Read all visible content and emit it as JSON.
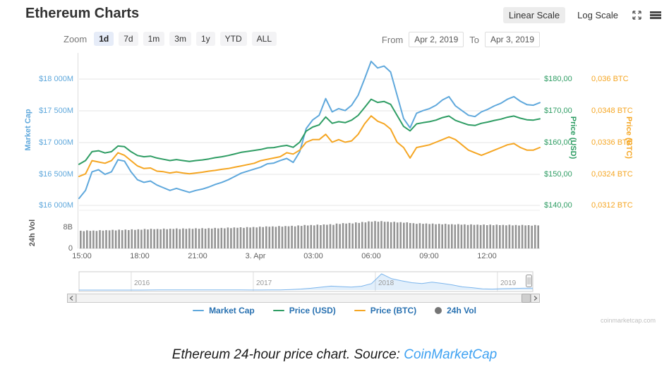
{
  "header": {
    "title": "Ethereum Charts",
    "scale_toggle": {
      "linear": "Linear Scale",
      "log": "Log Scale"
    },
    "icons": [
      "expand-icon",
      "menu-icon"
    ]
  },
  "toolbar": {
    "zoom_label": "Zoom",
    "zoom_buttons": [
      "1d",
      "7d",
      "1m",
      "3m",
      "1y",
      "YTD",
      "ALL"
    ],
    "active_zoom": "1d",
    "from_label": "From",
    "from_value": "Apr 2, 2019",
    "to_label": "To",
    "to_value": "Apr 3, 2019"
  },
  "legend": [
    {
      "label": "Market Cap",
      "color": "#5fa8dc",
      "swatch": "line"
    },
    {
      "label": "Price (USD)",
      "color": "#2f9d64",
      "swatch": "line"
    },
    {
      "label": "Price (BTC)",
      "color": "#f5a623",
      "swatch": "line"
    },
    {
      "label": "24h Vol",
      "color": "#757575",
      "swatch": "dot"
    }
  ],
  "watermark": "coinmarketcap.com",
  "caption": {
    "text": "Ethereum 24-hour price chart. Source: ",
    "link": "CoinMarketCap"
  },
  "chart_data": {
    "type": "line",
    "title": "Ethereum Charts",
    "x_range": "Apr 2, 2019 ~14:50 to Apr 3, 2019 ~14:30",
    "x_tick_labels": [
      "15:00",
      "18:00",
      "21:00",
      "3. Apr",
      "03:00",
      "06:00",
      "09:00",
      "12:00"
    ],
    "axes": {
      "market_cap": {
        "title": "Market Cap",
        "color": "#5fa8dc",
        "tick_labels": [
          "$18 000M",
          "$17 500M",
          "$17 000M",
          "$16 500M",
          "$16 000M"
        ],
        "tick_values": [
          18000,
          17500,
          17000,
          16500,
          16000
        ]
      },
      "price_usd": {
        "title": "Price (USD)",
        "color": "#2f9d64",
        "tick_labels": [
          "$180,00",
          "$170,00",
          "$160,00",
          "$150,00",
          "$140,00"
        ],
        "tick_values": [
          180,
          170,
          160,
          150,
          140
        ]
      },
      "price_btc": {
        "title": "Price (BTC)",
        "color": "#f5a623",
        "tick_labels": [
          "0,036 BTC",
          "0,0348 BTC",
          "0,0336 BTC",
          "0,0324 BTC",
          "0,0312 BTC"
        ],
        "tick_values": [
          0.036,
          0.0348,
          0.0336,
          0.0324,
          0.0312
        ]
      },
      "volume": {
        "title": "24h Vol",
        "tick_labels": [
          "8B",
          "0"
        ],
        "tick_values": [
          8,
          0
        ]
      }
    },
    "series": [
      {
        "name": "Market Cap",
        "axis": "market_cap",
        "unit": "USD millions",
        "color": "#5fa8dc",
        "values": [
          16111,
          16238,
          16532,
          16564,
          16490,
          16532,
          16722,
          16701,
          16532,
          16406,
          16364,
          16385,
          16322,
          16279,
          16237,
          16269,
          16237,
          16206,
          16237,
          16258,
          16290,
          16332,
          16364,
          16406,
          16458,
          16511,
          16543,
          16574,
          16606,
          16658,
          16669,
          16711,
          16743,
          16680,
          16848,
          17217,
          17353,
          17427,
          17690,
          17480,
          17532,
          17501,
          17585,
          17743,
          18006,
          18280,
          18175,
          18206,
          18112,
          17743,
          17375,
          17227,
          17459,
          17501,
          17532,
          17585,
          17669,
          17722,
          17575,
          17501,
          17427,
          17406,
          17480,
          17522,
          17575,
          17617,
          17680,
          17722,
          17648,
          17595,
          17585,
          17627
        ]
      },
      {
        "name": "Price (USD)",
        "axis": "price_usd",
        "unit": "USD",
        "color": "#2f9d64",
        "values": [
          153.0,
          154.2,
          157.0,
          157.3,
          156.6,
          157.0,
          158.8,
          158.6,
          157.0,
          155.8,
          155.4,
          155.6,
          155.0,
          154.6,
          154.2,
          154.5,
          154.2,
          153.9,
          154.2,
          154.4,
          154.7,
          155.1,
          155.4,
          155.8,
          156.3,
          156.8,
          157.1,
          157.4,
          157.7,
          158.2,
          158.3,
          158.7,
          159.0,
          158.4,
          160.0,
          163.5,
          164.8,
          165.5,
          168.0,
          166.0,
          166.5,
          166.2,
          167.0,
          168.5,
          171.0,
          173.6,
          172.6,
          172.9,
          172.0,
          168.5,
          165.0,
          163.6,
          165.8,
          166.2,
          166.5,
          167.0,
          167.8,
          168.3,
          166.9,
          166.2,
          165.5,
          165.3,
          166.0,
          166.4,
          166.9,
          167.3,
          167.9,
          168.3,
          167.6,
          167.1,
          167.0,
          167.4
        ]
      },
      {
        "name": "Price (BTC)",
        "axis": "price_btc",
        "unit": "BTC",
        "color": "#f5a623",
        "values": [
          0.0323,
          0.0324,
          0.0329,
          0.03285,
          0.0328,
          0.0329,
          0.0332,
          0.0331,
          0.0329,
          0.0327,
          0.0326,
          0.03262,
          0.0325,
          0.03248,
          0.03243,
          0.03247,
          0.03243,
          0.0324,
          0.03243,
          0.03246,
          0.0325,
          0.03253,
          0.03257,
          0.0326,
          0.03265,
          0.0327,
          0.03275,
          0.0328,
          0.0329,
          0.03295,
          0.033,
          0.03305,
          0.0332,
          0.03315,
          0.0333,
          0.0336,
          0.0337,
          0.0337,
          0.0339,
          0.0336,
          0.0337,
          0.0336,
          0.03365,
          0.0339,
          0.0343,
          0.0346,
          0.0344,
          0.0343,
          0.0341,
          0.0336,
          0.0334,
          0.033,
          0.0334,
          0.03345,
          0.0335,
          0.0336,
          0.0337,
          0.0338,
          0.0337,
          0.0335,
          0.0333,
          0.0332,
          0.0331,
          0.0332,
          0.0333,
          0.0334,
          0.0335,
          0.03355,
          0.0334,
          0.0333,
          0.0333,
          0.0334
        ]
      }
    ],
    "volume_series": {
      "name": "24h Vol",
      "unit": "B",
      "color": "#949494",
      "values": [
        6.7,
        6.53,
        6.82,
        6.65,
        6.78,
        6.61,
        6.9,
        6.73,
        6.91,
        6.84,
        7.03,
        6.81,
        7.09,
        6.92,
        7.11,
        6.94,
        7.22,
        7.0,
        7.24,
        7.07,
        7.35,
        7.17,
        7.43,
        7.26,
        7.37,
        7.22,
        7.49,
        7.28,
        7.47,
        7.36,
        7.56,
        7.31,
        7.57,
        7.42,
        7.58,
        7.38,
        7.64,
        7.43,
        7.65,
        7.46,
        7.66,
        7.48,
        7.77,
        7.58,
        7.75,
        7.6,
        7.9,
        7.68,
        7.93,
        7.8,
        8.0,
        7.76,
        8.07,
        7.88,
        8.11,
        7.95,
        8.25,
        8.05,
        8.35,
        8.18,
        8.34,
        8.17,
        8.48,
        8.25,
        8.48,
        8.36,
        8.56,
        8.32,
        8.7,
        8.52,
        8.86,
        8.66,
        8.87,
        8.69,
        9.02,
        8.81,
        9.06,
        8.93,
        9.16,
        8.9,
        9.4,
        9.22,
        9.58,
        9.38,
        9.62,
        9.45,
        9.85,
        9.62,
        10.0,
        9.85,
        10.25,
        10.1,
        10.35,
        10.1,
        10.32,
        10.05,
        10.12,
        9.88,
        10.05,
        9.82,
        9.92,
        9.7,
        9.86,
        9.6,
        9.55,
        9.32,
        9.54,
        9.3,
        9.43,
        9.22,
        9.41,
        9.12,
        9.3,
        9.08,
        9.3,
        9.06,
        9.18,
        8.98,
        9.2,
        8.96,
        9.1,
        8.88,
        9.1,
        8.9,
        9.0,
        8.82,
        9.05,
        8.8,
        8.98,
        8.76,
        9.0,
        8.8,
        8.9,
        8.72,
        8.95,
        8.7,
        8.88,
        8.66,
        8.9,
        8.7,
        8.8,
        8.62,
        8.85,
        8.68
      ]
    },
    "navigator": {
      "year_labels": [
        "2016",
        "2017",
        "2018",
        "2019"
      ],
      "unit": "USD",
      "color": "#7cb5ec",
      "values": [
        1.2,
        1.0,
        0.9,
        0.9,
        1.0,
        0.9,
        2.4,
        6.2,
        11.4,
        10.6,
        9.2,
        14.0,
        12.5,
        11.2,
        12.1,
        13.0,
        11.8,
        8.2,
        8.0,
        10.9,
        15.7,
        48,
        90,
        160,
        250,
        340,
        300,
        260,
        330,
        560,
        1400,
        980,
        800,
        640,
        560,
        690,
        580,
        450,
        280,
        205,
        110,
        85,
        120,
        140,
        158,
        165
      ]
    }
  }
}
